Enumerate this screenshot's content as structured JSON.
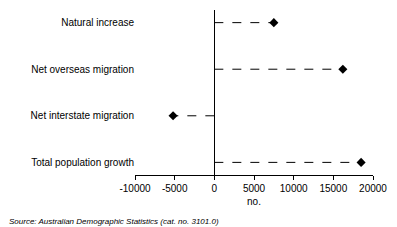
{
  "chart_data": {
    "type": "dot",
    "orientation": "horizontal",
    "categories": [
      "Natural increase",
      "Net overseas migration",
      "Net interstate migration",
      "Total population growth"
    ],
    "values": [
      7500,
      16200,
      -5200,
      18500
    ],
    "color": "#000000",
    "marker": "diamond",
    "line_style": "dashed",
    "xlim": [
      -10000,
      20000
    ],
    "xticks": [
      -10000,
      -5000,
      0,
      5000,
      10000,
      15000,
      20000
    ],
    "x_label": "no.",
    "annotations": [
      "Source: Australian Demographic Statistics (cat. no. 3101.0)"
    ],
    "grid": false
  }
}
